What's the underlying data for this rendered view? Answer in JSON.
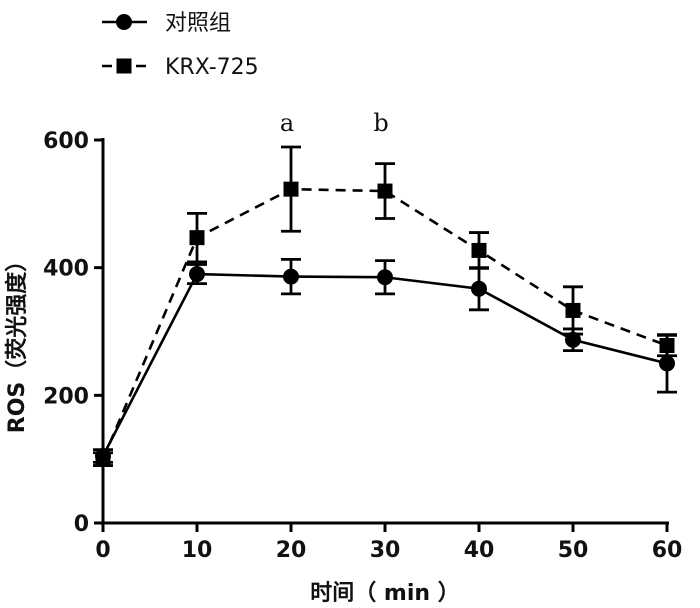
{
  "chart_data": {
    "type": "line",
    "title": "",
    "xlabel": "时间（ min ）",
    "ylabel": "ROS（荧光强度）",
    "xlim": [
      0,
      60
    ],
    "ylim": [
      0,
      600
    ],
    "x_ticks": [
      "0",
      "10",
      "20",
      "30",
      "40",
      "50",
      "60"
    ],
    "y_ticks": [
      "0",
      "200",
      "400",
      "600"
    ],
    "grid": false,
    "legend_position": "top-left",
    "series": [
      {
        "name": "对照组",
        "marker": "circle",
        "line_style": "solid",
        "x": [
          0,
          10,
          20,
          30,
          40,
          50,
          60
        ],
        "values": [
          105,
          390,
          386,
          385,
          367,
          287,
          250
        ],
        "error": [
          10,
          15,
          27,
          26,
          33,
          17,
          45
        ]
      },
      {
        "name": "KRX-725",
        "marker": "square",
        "line_style": "dashed",
        "x": [
          0,
          10,
          20,
          30,
          40,
          50,
          60
        ],
        "values": [
          100,
          447,
          523,
          520,
          427,
          333,
          278
        ],
        "error": [
          10,
          38,
          66,
          43,
          28,
          37,
          16
        ]
      }
    ],
    "annotations": [
      {
        "text": "a",
        "x": 20
      },
      {
        "text": "b",
        "x": 30
      }
    ]
  }
}
